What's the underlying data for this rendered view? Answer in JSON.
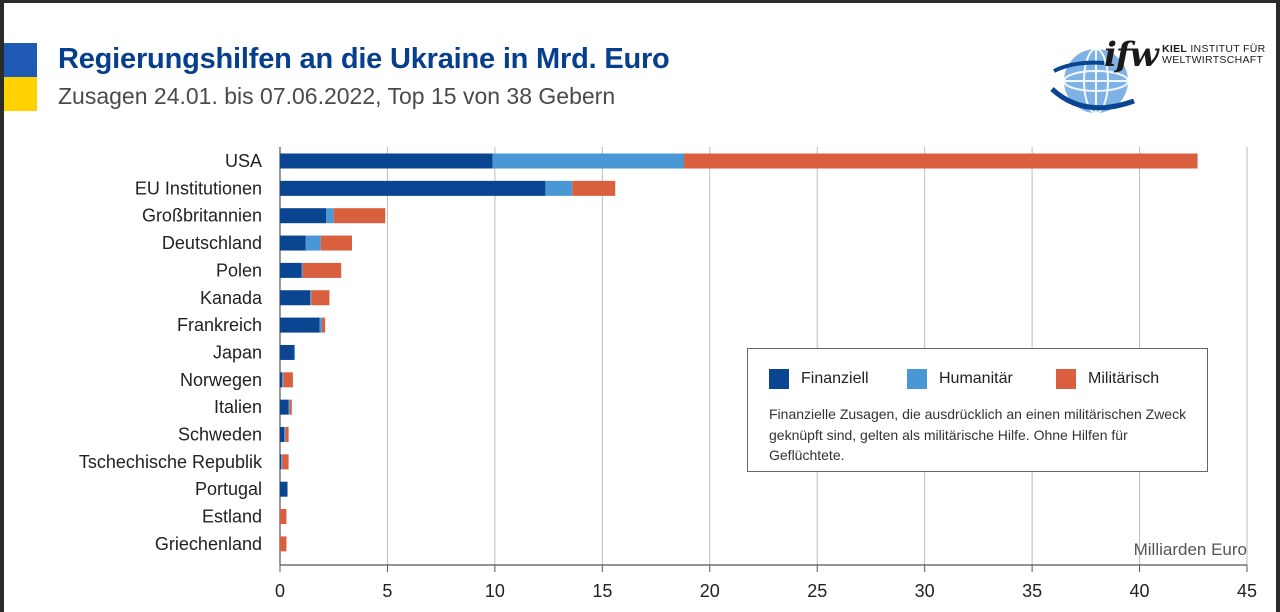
{
  "header": {
    "title": "Regierungshilfen an die Ukraine in Mrd. Euro",
    "subtitle": "Zusagen 24.01. bis 07.06.2022, Top 15 von 38 Gebern"
  },
  "logo": {
    "word": "ifw",
    "org_line1_bold": "KIEL",
    "org_line1_rest": " INSTITUT FÜR",
    "org_line2": "WELTWIRTSCHAFT"
  },
  "colors": {
    "finanziell": "#0a4592",
    "humanitaer": "#4a97d6",
    "militaerisch": "#d95f3e",
    "flag_blue": "#1f5bb4",
    "flag_yellow": "#ffd200"
  },
  "legend": {
    "items": [
      {
        "label": "Finanziell",
        "color": "#0a4592"
      },
      {
        "label": "Humanitär",
        "color": "#4a97d6"
      },
      {
        "label": "Militärisch",
        "color": "#d95f3e"
      }
    ],
    "note": "Finanzielle Zusagen, die ausdrücklich an einen militärischen Zweck geknüpft sind, gelten als militärische Hilfe. Ohne Hilfen für Geflüchtete.",
    "placement": "lower-right"
  },
  "chart_data": {
    "type": "bar",
    "orientation": "horizontal",
    "stacked": true,
    "categories": [
      "USA",
      "EU Institutionen",
      "Großbritannien",
      "Deutschland",
      "Polen",
      "Kanada",
      "Frankreich",
      "Japan",
      "Norwegen",
      "Italien",
      "Schweden",
      "Tschechische Republik",
      "Portugal",
      "Estland",
      "Griechenland"
    ],
    "series": [
      {
        "name": "Finanziell",
        "values": [
          9.9,
          12.35,
          2.15,
          1.2,
          1.0,
          1.4,
          1.85,
          0.65,
          0.1,
          0.4,
          0.2,
          0.05,
          0.35,
          0.0,
          0.0
        ]
      },
      {
        "name": "Humanitär",
        "values": [
          8.9,
          1.25,
          0.35,
          0.7,
          0.05,
          0.05,
          0.1,
          0.05,
          0.05,
          0.05,
          0.05,
          0.05,
          0.0,
          0.0,
          0.0
        ]
      },
      {
        "name": "Militärisch",
        "values": [
          23.9,
          2.0,
          2.4,
          1.45,
          1.8,
          0.85,
          0.15,
          0.0,
          0.45,
          0.1,
          0.15,
          0.3,
          0.0,
          0.3,
          0.3
        ]
      }
    ],
    "xlabel": "Milliarden Euro",
    "xlim": [
      0,
      45
    ],
    "xticks": [
      0,
      5,
      10,
      15,
      20,
      25,
      30,
      35,
      40,
      45
    ],
    "grid": "vertical"
  }
}
